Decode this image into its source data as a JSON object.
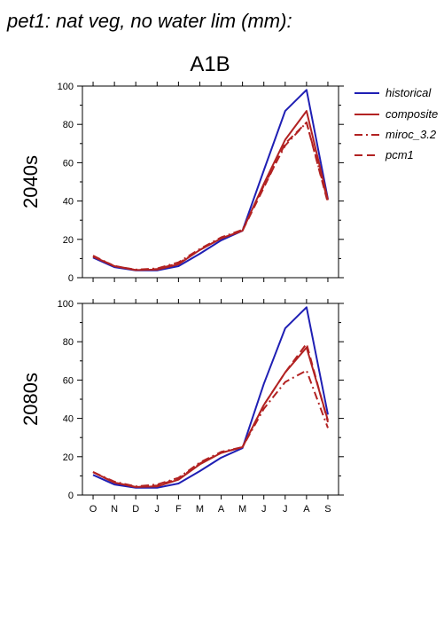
{
  "title": "pet1: nat veg, no water lim (mm):",
  "scenario": "A1B",
  "legend": [
    {
      "label": "historical",
      "color": "#1f1fb4",
      "dash": "solid"
    },
    {
      "label": "composite",
      "color": "#b22222",
      "dash": "solid"
    },
    {
      "label": "miroc_3.2",
      "color": "#b22222",
      "dash": "dashdot"
    },
    {
      "label": "pcm1",
      "color": "#b22222",
      "dash": "dashed"
    }
  ],
  "chart_data": [
    {
      "type": "line",
      "panel_label": "2040s",
      "categories": [
        "O",
        "N",
        "D",
        "J",
        "F",
        "M",
        "A",
        "M",
        "J",
        "J",
        "A",
        "S"
      ],
      "ylim": [
        0,
        100
      ],
      "yticks": [
        0,
        20,
        40,
        60,
        80,
        100
      ],
      "series": [
        {
          "name": "historical",
          "values": [
            10.5,
            5.5,
            3.8,
            3.8,
            6.0,
            12.5,
            19.5,
            24.5,
            56.0,
            87.0,
            98.0,
            41.0
          ]
        },
        {
          "name": "composite",
          "values": [
            11.0,
            6.0,
            4.0,
            4.2,
            7.0,
            14.5,
            20.5,
            24.5,
            49.0,
            72.0,
            87.0,
            40.5
          ]
        },
        {
          "name": "miroc_3.2",
          "values": [
            11.5,
            6.0,
            4.2,
            4.8,
            8.0,
            15.0,
            21.0,
            25.0,
            48.0,
            69.0,
            81.0,
            40.0
          ]
        },
        {
          "name": "pcm1",
          "values": [
            11.0,
            6.2,
            4.0,
            4.5,
            7.5,
            14.5,
            20.5,
            24.5,
            47.0,
            70.0,
            81.0,
            39.0
          ]
        }
      ]
    },
    {
      "type": "line",
      "panel_label": "2080s",
      "categories": [
        "O",
        "N",
        "D",
        "J",
        "F",
        "M",
        "A",
        "M",
        "J",
        "J",
        "A",
        "S"
      ],
      "ylim": [
        0,
        100
      ],
      "yticks": [
        0,
        20,
        40,
        60,
        80,
        100
      ],
      "series": [
        {
          "name": "historical",
          "values": [
            10.5,
            5.5,
            3.8,
            3.8,
            6.0,
            12.5,
            19.5,
            24.5,
            58.0,
            87.0,
            98.0,
            42.0
          ]
        },
        {
          "name": "composite",
          "values": [
            12.0,
            6.5,
            4.2,
            4.5,
            8.0,
            16.0,
            22.0,
            25.0,
            47.0,
            64.0,
            77.0,
            39.0
          ]
        },
        {
          "name": "miroc_3.2",
          "values": [
            12.0,
            7.0,
            4.5,
            5.5,
            9.0,
            17.0,
            22.5,
            25.0,
            45.0,
            59.0,
            65.0,
            35.0
          ]
        },
        {
          "name": "pcm1",
          "values": [
            12.0,
            6.5,
            4.2,
            5.0,
            8.5,
            16.5,
            22.0,
            25.0,
            47.0,
            64.0,
            79.0,
            38.0
          ]
        }
      ]
    }
  ]
}
